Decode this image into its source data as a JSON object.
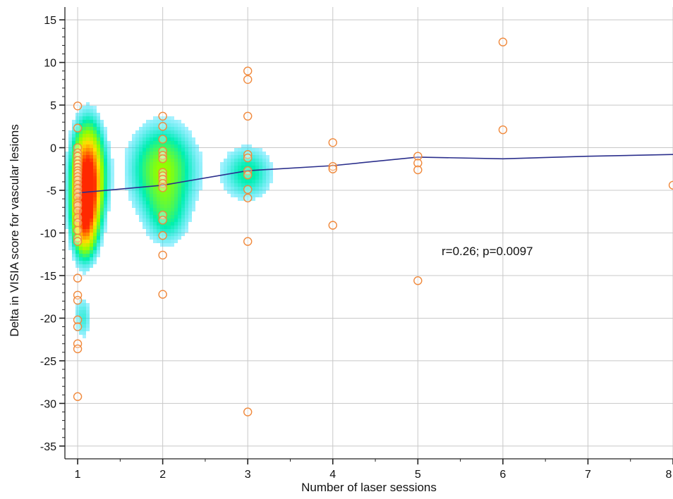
{
  "chart_data": {
    "type": "scatter",
    "title": "",
    "xlabel": "Number  of laser sessions",
    "ylabel": "Delta in VISIA score for vascular lesions",
    "xlim": [
      0.85,
      8.0
    ],
    "ylim": [
      -36.5,
      16.5
    ],
    "x_ticks": [
      1,
      2,
      3,
      4,
      5,
      6,
      7,
      8
    ],
    "y_ticks": [
      15,
      10,
      5,
      0,
      -5,
      -10,
      -15,
      -20,
      -25,
      -30,
      -35
    ],
    "grid": true,
    "annotation": "r=0.26; p=0.0097",
    "colors": {
      "marker": "#f0893c",
      "trend": "#2b2f8c",
      "grid": "#c8c8c8",
      "density": [
        "#00d9ff",
        "#00f0b0",
        "#90ff00",
        "#ffe000",
        "#ff7a00",
        "#ff2800"
      ]
    },
    "points": [
      {
        "x": 1,
        "y": 4.9
      },
      {
        "x": 1,
        "y": 2.3
      },
      {
        "x": 1,
        "y": 0.0
      },
      {
        "x": 1,
        "y": -0.6
      },
      {
        "x": 1,
        "y": -1.0
      },
      {
        "x": 1,
        "y": -1.5
      },
      {
        "x": 1,
        "y": -1.9
      },
      {
        "x": 1,
        "y": -2.3
      },
      {
        "x": 1,
        "y": -2.7
      },
      {
        "x": 1,
        "y": -3.0
      },
      {
        "x": 1,
        "y": -3.4
      },
      {
        "x": 1,
        "y": -3.8
      },
      {
        "x": 1,
        "y": -4.3
      },
      {
        "x": 1,
        "y": -4.8
      },
      {
        "x": 1,
        "y": -5.3
      },
      {
        "x": 1,
        "y": -5.8
      },
      {
        "x": 1,
        "y": -6.5
      },
      {
        "x": 1,
        "y": -6.8
      },
      {
        "x": 1,
        "y": -7.4
      },
      {
        "x": 1,
        "y": -8.2
      },
      {
        "x": 1,
        "y": -8.8
      },
      {
        "x": 1,
        "y": -9.7
      },
      {
        "x": 1,
        "y": -10.6
      },
      {
        "x": 1,
        "y": -11.0
      },
      {
        "x": 1,
        "y": -15.3
      },
      {
        "x": 1,
        "y": -17.3
      },
      {
        "x": 1,
        "y": -17.9
      },
      {
        "x": 1,
        "y": -20.2
      },
      {
        "x": 1,
        "y": -21.0
      },
      {
        "x": 1,
        "y": -23.0
      },
      {
        "x": 1,
        "y": -23.6
      },
      {
        "x": 1,
        "y": -29.2
      },
      {
        "x": 2,
        "y": 3.7
      },
      {
        "x": 2,
        "y": 2.5
      },
      {
        "x": 2,
        "y": 1.0
      },
      {
        "x": 2,
        "y": -0.4
      },
      {
        "x": 2,
        "y": -0.9
      },
      {
        "x": 2,
        "y": -1.3
      },
      {
        "x": 2,
        "y": -2.9
      },
      {
        "x": 2,
        "y": -3.3
      },
      {
        "x": 2,
        "y": -3.7
      },
      {
        "x": 2,
        "y": -4.2
      },
      {
        "x": 2,
        "y": -4.7
      },
      {
        "x": 2,
        "y": -7.9
      },
      {
        "x": 2,
        "y": -8.5
      },
      {
        "x": 2,
        "y": -10.3
      },
      {
        "x": 2,
        "y": -12.6
      },
      {
        "x": 2,
        "y": -17.2
      },
      {
        "x": 3,
        "y": 9.0
      },
      {
        "x": 3,
        "y": 8.0
      },
      {
        "x": 3,
        "y": 3.7
      },
      {
        "x": 3,
        "y": -0.8
      },
      {
        "x": 3,
        "y": -1.2
      },
      {
        "x": 3,
        "y": -2.7
      },
      {
        "x": 3,
        "y": -3.2
      },
      {
        "x": 3,
        "y": -4.9
      },
      {
        "x": 3,
        "y": -5.9
      },
      {
        "x": 3,
        "y": -11.0
      },
      {
        "x": 3,
        "y": -31.0
      },
      {
        "x": 4,
        "y": 0.6
      },
      {
        "x": 4,
        "y": -2.2
      },
      {
        "x": 4,
        "y": -2.5
      },
      {
        "x": 4,
        "y": -9.1
      },
      {
        "x": 5,
        "y": -1.0
      },
      {
        "x": 5,
        "y": -1.8
      },
      {
        "x": 5,
        "y": -2.6
      },
      {
        "x": 5,
        "y": -15.6
      },
      {
        "x": 6,
        "y": 12.4
      },
      {
        "x": 6,
        "y": 2.1
      },
      {
        "x": 8,
        "y": -4.4
      }
    ],
    "trend_line": [
      {
        "x": 1,
        "y": -5.3
      },
      {
        "x": 2,
        "y": -4.4
      },
      {
        "x": 3,
        "y": -2.7
      },
      {
        "x": 4,
        "y": -2.1
      },
      {
        "x": 5,
        "y": -1.1
      },
      {
        "x": 6,
        "y": -1.3
      },
      {
        "x": 7,
        "y": -1.0
      },
      {
        "x": 8,
        "y": -0.8
      }
    ],
    "density_blobs": [
      {
        "x": 1.12,
        "y": -3.5,
        "sx": 0.13,
        "sy": 4.2,
        "w": 1.0
      },
      {
        "x": 1.08,
        "y": -9.0,
        "sx": 0.1,
        "sy": 3.0,
        "w": 0.55
      },
      {
        "x": 1.06,
        "y": -20.0,
        "sx": 0.08,
        "sy": 2.0,
        "w": 0.22
      },
      {
        "x": 2.0,
        "y": -2.5,
        "sx": 0.28,
        "sy": 3.8,
        "w": 0.45
      },
      {
        "x": 2.05,
        "y": -8.5,
        "sx": 0.18,
        "sy": 2.5,
        "w": 0.2
      },
      {
        "x": 3.0,
        "y": -3.0,
        "sx": 0.22,
        "sy": 2.4,
        "w": 0.3
      }
    ]
  }
}
